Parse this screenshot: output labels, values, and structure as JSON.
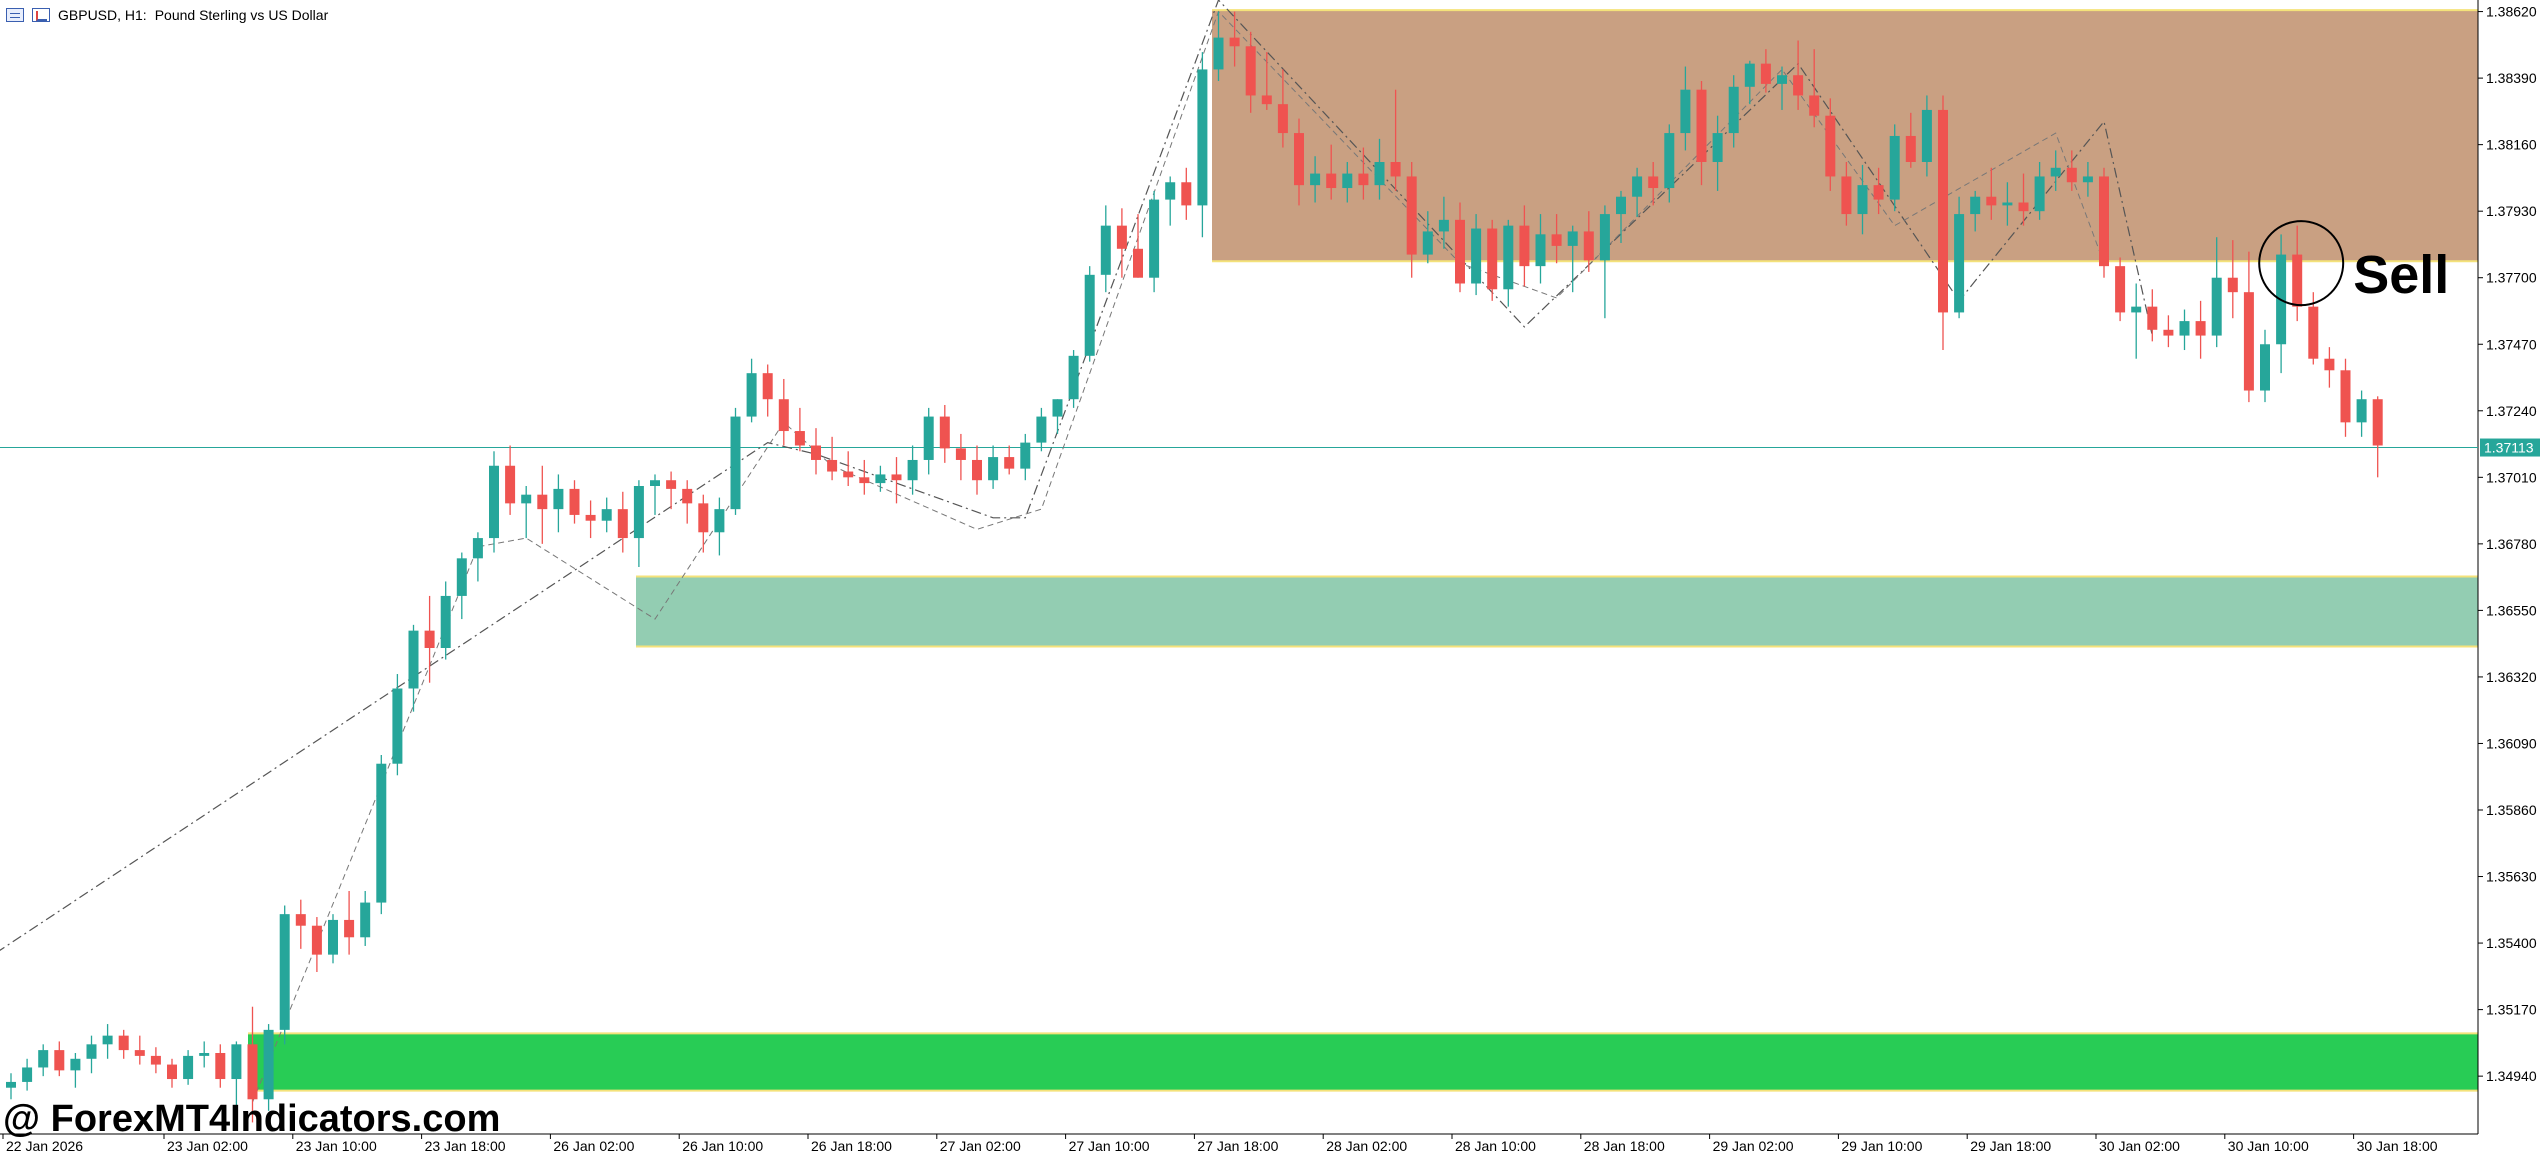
{
  "header": {
    "symbol": "GBPUSD, H1:",
    "description": "Pound Sterling vs US Dollar"
  },
  "watermark": "@ ForexMT4Indicators.com",
  "chart_data": {
    "type": "candlestick",
    "ylim": [
      1.3474,
      1.3866
    ],
    "y_ticks": [
      "1.38620",
      "1.38390",
      "1.38160",
      "1.37930",
      "1.37700",
      "1.37470",
      "1.37240",
      "1.37010",
      "1.36780",
      "1.36550",
      "1.36320",
      "1.36090",
      "1.35860",
      "1.35630",
      "1.35400",
      "1.35170",
      "1.34940"
    ],
    "x_ticks": [
      {
        "label": "22 Jan 2026",
        "index": 0
      },
      {
        "label": "23 Jan 02:00",
        "index": 10
      },
      {
        "label": "23 Jan 10:00",
        "index": 18
      },
      {
        "label": "23 Jan 18:00",
        "index": 26
      },
      {
        "label": "26 Jan 02:00",
        "index": 34
      },
      {
        "label": "26 Jan 10:00",
        "index": 42
      },
      {
        "label": "26 Jan 18:00",
        "index": 50
      },
      {
        "label": "27 Jan 02:00",
        "index": 58
      },
      {
        "label": "27 Jan 10:00",
        "index": 66
      },
      {
        "label": "27 Jan 18:00",
        "index": 74
      },
      {
        "label": "28 Jan 02:00",
        "index": 82
      },
      {
        "label": "28 Jan 10:00",
        "index": 90
      },
      {
        "label": "28 Jan 18:00",
        "index": 98
      },
      {
        "label": "29 Jan 02:00",
        "index": 106
      },
      {
        "label": "29 Jan 10:00",
        "index": 114
      },
      {
        "label": "29 Jan 18:00",
        "index": 122
      },
      {
        "label": "30 Jan 02:00",
        "index": 130
      },
      {
        "label": "30 Jan 10:00",
        "index": 138
      },
      {
        "label": "30 Jan 18:00",
        "index": 146
      }
    ],
    "current_price": "1.37113",
    "current_value": 1.37113,
    "candles": [
      [
        1.349,
        1.3495,
        1.3486,
        1.3492
      ],
      [
        1.3492,
        1.35,
        1.3489,
        1.3497
      ],
      [
        1.3497,
        1.3505,
        1.3494,
        1.3503
      ],
      [
        1.3503,
        1.3506,
        1.3494,
        1.3496
      ],
      [
        1.3496,
        1.3502,
        1.349,
        1.35
      ],
      [
        1.35,
        1.3508,
        1.3495,
        1.3505
      ],
      [
        1.3505,
        1.3512,
        1.35,
        1.3508
      ],
      [
        1.3508,
        1.351,
        1.35,
        1.3503
      ],
      [
        1.3503,
        1.3508,
        1.3498,
        1.3501
      ],
      [
        1.3501,
        1.3504,
        1.3495,
        1.3498
      ],
      [
        1.3498,
        1.35,
        1.349,
        1.3493
      ],
      [
        1.3493,
        1.3503,
        1.3491,
        1.3501
      ],
      [
        1.3501,
        1.3506,
        1.3497,
        1.3502
      ],
      [
        1.3502,
        1.3505,
        1.349,
        1.3493
      ],
      [
        1.3493,
        1.3506,
        1.348,
        1.3505
      ],
      [
        1.3505,
        1.3518,
        1.3478,
        1.3486
      ],
      [
        1.3486,
        1.3512,
        1.3482,
        1.351
      ],
      [
        1.351,
        1.3553,
        1.3505,
        1.355
      ],
      [
        1.355,
        1.3555,
        1.3538,
        1.3546
      ],
      [
        1.3546,
        1.3549,
        1.353,
        1.3536
      ],
      [
        1.3536,
        1.355,
        1.3533,
        1.3548
      ],
      [
        1.3548,
        1.3558,
        1.3536,
        1.3542
      ],
      [
        1.3542,
        1.3558,
        1.3539,
        1.3554
      ],
      [
        1.3554,
        1.3605,
        1.355,
        1.3602
      ],
      [
        1.3602,
        1.3633,
        1.3598,
        1.3628
      ],
      [
        1.3628,
        1.365,
        1.362,
        1.3648
      ],
      [
        1.3648,
        1.366,
        1.363,
        1.3642
      ],
      [
        1.3642,
        1.3665,
        1.3638,
        1.366
      ],
      [
        1.366,
        1.3675,
        1.3652,
        1.3673
      ],
      [
        1.3673,
        1.3682,
        1.3665,
        1.368
      ],
      [
        1.368,
        1.371,
        1.3675,
        1.3705
      ],
      [
        1.3705,
        1.3712,
        1.3688,
        1.3692
      ],
      [
        1.3692,
        1.3698,
        1.368,
        1.3695
      ],
      [
        1.3695,
        1.3705,
        1.3678,
        1.369
      ],
      [
        1.369,
        1.3702,
        1.3682,
        1.3697
      ],
      [
        1.3697,
        1.37,
        1.3685,
        1.3688
      ],
      [
        1.3688,
        1.3693,
        1.368,
        1.3686
      ],
      [
        1.3686,
        1.3694,
        1.3682,
        1.369
      ],
      [
        1.369,
        1.3696,
        1.3675,
        1.368
      ],
      [
        1.368,
        1.37,
        1.367,
        1.3698
      ],
      [
        1.3698,
        1.3702,
        1.3688,
        1.37
      ],
      [
        1.37,
        1.3703,
        1.369,
        1.3697
      ],
      [
        1.3697,
        1.37,
        1.3685,
        1.3692
      ],
      [
        1.3692,
        1.3695,
        1.3675,
        1.3682
      ],
      [
        1.3682,
        1.3694,
        1.3674,
        1.369
      ],
      [
        1.369,
        1.3725,
        1.3688,
        1.3722
      ],
      [
        1.3722,
        1.3742,
        1.372,
        1.3737
      ],
      [
        1.3737,
        1.374,
        1.3722,
        1.3728
      ],
      [
        1.3728,
        1.3735,
        1.3712,
        1.3717
      ],
      [
        1.3717,
        1.3725,
        1.371,
        1.3712
      ],
      [
        1.3712,
        1.3718,
        1.3702,
        1.3707
      ],
      [
        1.3707,
        1.3715,
        1.37,
        1.3703
      ],
      [
        1.3703,
        1.371,
        1.3698,
        1.3701
      ],
      [
        1.3701,
        1.3707,
        1.3695,
        1.3699
      ],
      [
        1.3699,
        1.3705,
        1.3696,
        1.3702
      ],
      [
        1.3702,
        1.3708,
        1.3692,
        1.37
      ],
      [
        1.37,
        1.3712,
        1.3695,
        1.3707
      ],
      [
        1.3707,
        1.3725,
        1.3702,
        1.3722
      ],
      [
        1.3722,
        1.3726,
        1.3706,
        1.3711
      ],
      [
        1.3711,
        1.3716,
        1.37,
        1.3707
      ],
      [
        1.3707,
        1.3712,
        1.3695,
        1.37
      ],
      [
        1.37,
        1.3712,
        1.3697,
        1.3708
      ],
      [
        1.3708,
        1.3712,
        1.3702,
        1.3704
      ],
      [
        1.3704,
        1.3716,
        1.37,
        1.3713
      ],
      [
        1.3713,
        1.3725,
        1.371,
        1.3722
      ],
      [
        1.3722,
        1.3728,
        1.3716,
        1.3728
      ],
      [
        1.3728,
        1.3745,
        1.3725,
        1.3743
      ],
      [
        1.3743,
        1.3774,
        1.3741,
        1.3771
      ],
      [
        1.3771,
        1.3795,
        1.3765,
        1.3788
      ],
      [
        1.3788,
        1.3794,
        1.377,
        1.378
      ],
      [
        1.378,
        1.3792,
        1.377,
        1.377
      ],
      [
        1.377,
        1.38,
        1.3765,
        1.3797
      ],
      [
        1.3797,
        1.3805,
        1.3788,
        1.3803
      ],
      [
        1.3803,
        1.3808,
        1.379,
        1.3795
      ],
      [
        1.3795,
        1.3848,
        1.3784,
        1.3842
      ],
      [
        1.3842,
        1.3862,
        1.3838,
        1.3853
      ],
      [
        1.3853,
        1.3862,
        1.3843,
        1.385
      ],
      [
        1.385,
        1.3855,
        1.3827,
        1.3833
      ],
      [
        1.3833,
        1.3848,
        1.3828,
        1.383
      ],
      [
        1.383,
        1.3842,
        1.3815,
        1.382
      ],
      [
        1.382,
        1.3825,
        1.3795,
        1.3802
      ],
      [
        1.3802,
        1.3812,
        1.3796,
        1.3806
      ],
      [
        1.3806,
        1.3816,
        1.3797,
        1.3801
      ],
      [
        1.3801,
        1.381,
        1.3796,
        1.3806
      ],
      [
        1.3806,
        1.3815,
        1.3797,
        1.3802
      ],
      [
        1.3802,
        1.3818,
        1.3797,
        1.381
      ],
      [
        1.381,
        1.3835,
        1.38,
        1.3805
      ],
      [
        1.3805,
        1.381,
        1.377,
        1.3778
      ],
      [
        1.3778,
        1.3793,
        1.3775,
        1.3786
      ],
      [
        1.3786,
        1.3798,
        1.378,
        1.379
      ],
      [
        1.379,
        1.3796,
        1.3765,
        1.3768
      ],
      [
        1.3768,
        1.3792,
        1.3764,
        1.3787
      ],
      [
        1.3787,
        1.379,
        1.3762,
        1.3766
      ],
      [
        1.3766,
        1.379,
        1.376,
        1.3788
      ],
      [
        1.3788,
        1.3795,
        1.3767,
        1.3774
      ],
      [
        1.3774,
        1.3792,
        1.3768,
        1.3785
      ],
      [
        1.3785,
        1.3792,
        1.3775,
        1.3781
      ],
      [
        1.3781,
        1.3788,
        1.3765,
        1.3786
      ],
      [
        1.3786,
        1.3793,
        1.3772,
        1.3776
      ],
      [
        1.3776,
        1.3795,
        1.3756,
        1.3792
      ],
      [
        1.3792,
        1.38,
        1.3782,
        1.3798
      ],
      [
        1.3798,
        1.3808,
        1.3791,
        1.3805
      ],
      [
        1.3805,
        1.381,
        1.3795,
        1.3801
      ],
      [
        1.3801,
        1.3823,
        1.3796,
        1.382
      ],
      [
        1.382,
        1.3843,
        1.3814,
        1.3835
      ],
      [
        1.3835,
        1.3838,
        1.3802,
        1.381
      ],
      [
        1.381,
        1.3826,
        1.38,
        1.382
      ],
      [
        1.382,
        1.384,
        1.3815,
        1.3836
      ],
      [
        1.3836,
        1.3845,
        1.383,
        1.3844
      ],
      [
        1.3844,
        1.3849,
        1.3834,
        1.3837
      ],
      [
        1.3837,
        1.3843,
        1.3828,
        1.384
      ],
      [
        1.384,
        1.3852,
        1.3828,
        1.3833
      ],
      [
        1.3833,
        1.3849,
        1.3822,
        1.3826
      ],
      [
        1.3826,
        1.3832,
        1.38,
        1.3805
      ],
      [
        1.3805,
        1.381,
        1.3788,
        1.3792
      ],
      [
        1.3792,
        1.3809,
        1.3785,
        1.3802
      ],
      [
        1.3802,
        1.3808,
        1.3792,
        1.3797
      ],
      [
        1.3797,
        1.3823,
        1.3793,
        1.3819
      ],
      [
        1.3819,
        1.3827,
        1.3808,
        1.381
      ],
      [
        1.381,
        1.3833,
        1.3805,
        1.3828
      ],
      [
        1.3828,
        1.3833,
        1.3745,
        1.3758
      ],
      [
        1.3758,
        1.3798,
        1.3756,
        1.3792
      ],
      [
        1.3792,
        1.38,
        1.3786,
        1.3798
      ],
      [
        1.3798,
        1.3808,
        1.379,
        1.3795
      ],
      [
        1.3795,
        1.3803,
        1.3788,
        1.3796
      ],
      [
        1.3796,
        1.3806,
        1.3788,
        1.3793
      ],
      [
        1.3793,
        1.381,
        1.379,
        1.3805
      ],
      [
        1.3805,
        1.3814,
        1.38,
        1.3808
      ],
      [
        1.3808,
        1.3814,
        1.38,
        1.3803
      ],
      [
        1.3803,
        1.381,
        1.3798,
        1.3805
      ],
      [
        1.3805,
        1.3808,
        1.377,
        1.3774
      ],
      [
        1.3774,
        1.3777,
        1.3755,
        1.3758
      ],
      [
        1.3758,
        1.3768,
        1.3742,
        1.376
      ],
      [
        1.376,
        1.3766,
        1.3748,
        1.3752
      ],
      [
        1.3752,
        1.3757,
        1.3746,
        1.375
      ],
      [
        1.375,
        1.3759,
        1.3745,
        1.3755
      ],
      [
        1.3755,
        1.3762,
        1.3742,
        1.375
      ],
      [
        1.375,
        1.3784,
        1.3746,
        1.377
      ],
      [
        1.377,
        1.3783,
        1.3756,
        1.3765
      ],
      [
        1.3765,
        1.3779,
        1.3727,
        1.3731
      ],
      [
        1.3731,
        1.3752,
        1.3727,
        1.3747
      ],
      [
        1.3747,
        1.3785,
        1.3737,
        1.3778
      ],
      [
        1.3778,
        1.3788,
        1.3755,
        1.376
      ],
      [
        1.376,
        1.3765,
        1.374,
        1.3742
      ],
      [
        1.3742,
        1.3746,
        1.3732,
        1.3738
      ],
      [
        1.3738,
        1.3742,
        1.3715,
        1.372
      ],
      [
        1.372,
        1.3731,
        1.3715,
        1.3728
      ],
      [
        1.3728,
        1.3729,
        1.3701,
        1.3712
      ]
    ],
    "zones": [
      {
        "top": 1.38625,
        "bottom": 1.37757,
        "color": "#c9a082"
      },
      {
        "top": 1.36667,
        "bottom": 1.36425,
        "color": "#93cdb2"
      },
      {
        "top": 1.35088,
        "bottom": 1.3489,
        "color": "#28cc55"
      }
    ],
    "zigzag": [
      [
        -3,
        1.3529
      ],
      [
        47,
        1.3713
      ],
      [
        50,
        1.3709
      ],
      [
        61,
        1.3687
      ],
      [
        63,
        1.3687
      ],
      [
        75,
        1.3866
      ],
      [
        94,
        1.3753
      ],
      [
        111,
        1.3844
      ],
      [
        121,
        1.3762
      ],
      [
        130,
        1.3824
      ],
      [
        133,
        1.375
      ]
    ],
    "zigzag2": [
      [
        15,
        1.3485
      ],
      [
        29,
        1.3677
      ],
      [
        32,
        1.368
      ],
      [
        40,
        1.3652
      ],
      [
        48,
        1.372
      ],
      [
        51,
        1.3705
      ],
      [
        60,
        1.3683
      ],
      [
        64,
        1.369
      ],
      [
        75,
        1.3862
      ],
      [
        90,
        1.3775
      ],
      [
        96,
        1.3763
      ],
      [
        110,
        1.3842
      ],
      [
        117,
        1.3788
      ],
      [
        127,
        1.382
      ],
      [
        130,
        1.3775
      ]
    ],
    "annotation": {
      "text": "Sell",
      "index": 142,
      "price": 1.3774
    }
  }
}
